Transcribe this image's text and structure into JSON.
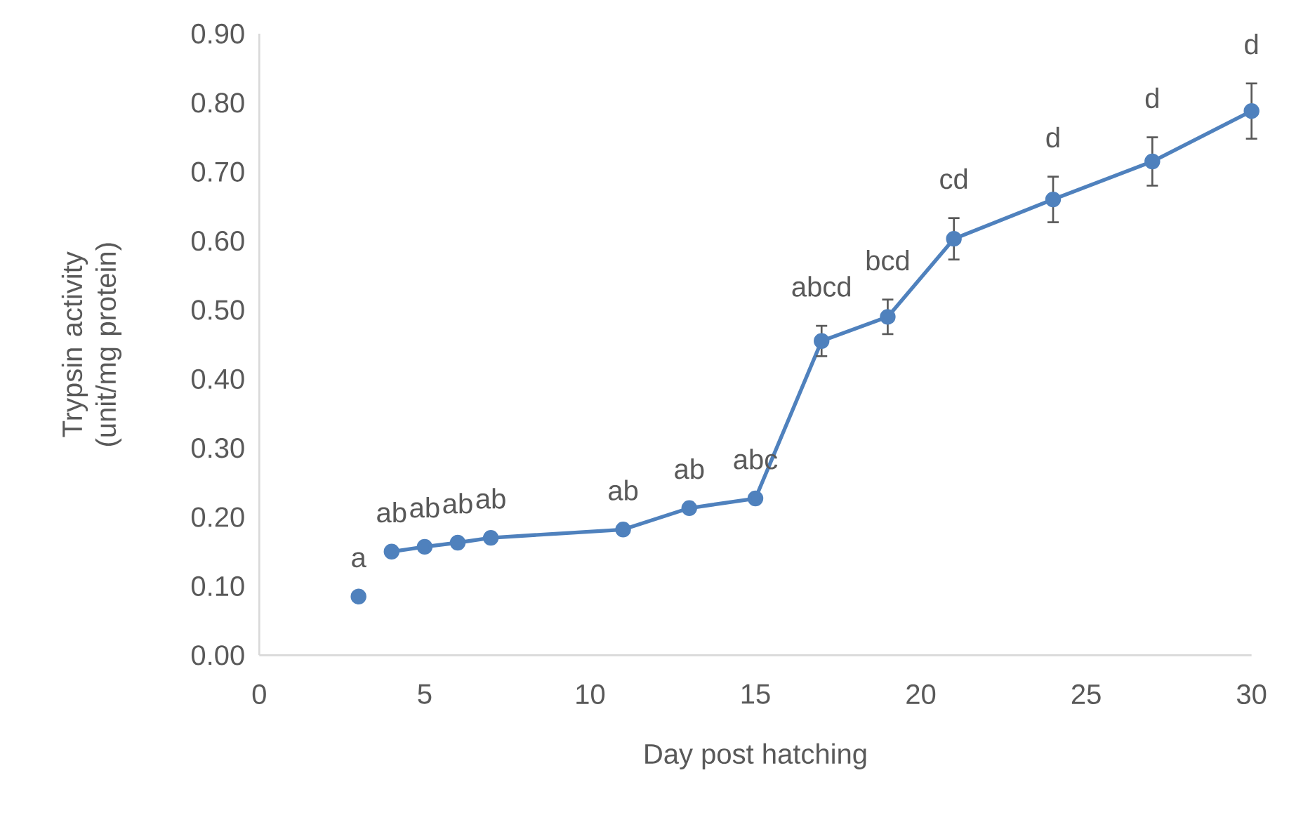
{
  "chart_data": {
    "type": "line",
    "xlabel": "Day post hatching",
    "ylabel": "Trypsin activity (unit/mg protein)",
    "xlim": [
      0,
      30
    ],
    "xticks": [
      0,
      5,
      10,
      15,
      20,
      25,
      30
    ],
    "ylim": [
      0,
      0.9
    ],
    "yticks": [
      {
        "value": 0,
        "label": "0.00"
      },
      {
        "value": 0.1,
        "label": "0.10"
      },
      {
        "value": 0.2,
        "label": "0.20"
      },
      {
        "value": 0.3,
        "label": "0.30"
      },
      {
        "value": 0.4,
        "label": "0.40"
      },
      {
        "value": 0.5,
        "label": "0.50"
      },
      {
        "value": 0.6,
        "label": "0.60"
      },
      {
        "value": 0.7,
        "label": "0.70"
      },
      {
        "value": 0.8,
        "label": "0.80"
      },
      {
        "value": 0.9,
        "label": "0.90"
      }
    ],
    "grid": false,
    "marker": "circle",
    "line_style": "solid",
    "series": [
      {
        "type": "scatter",
        "color": "#4f81bd",
        "x": [
          3
        ],
        "values": [
          0.085
        ],
        "errors": [
          null
        ]
      },
      {
        "color": "#4f81bd",
        "x": [
          4,
          5,
          6,
          7,
          11,
          13,
          15,
          17,
          19,
          21,
          24,
          27,
          30
        ],
        "values": [
          0.15,
          0.157,
          0.163,
          0.17,
          0.182,
          0.213,
          0.227,
          0.455,
          0.49,
          0.603,
          0.66,
          0.715,
          0.788
        ],
        "errors": [
          null,
          null,
          null,
          null,
          null,
          null,
          null,
          0.022,
          0.025,
          0.03,
          0.033,
          0.035,
          0.04
        ]
      }
    ],
    "annotations": [
      {
        "text": "a",
        "x": 3,
        "y": 0.085
      },
      {
        "text": "ab",
        "x": 4,
        "y": 0.15
      },
      {
        "text": "ab",
        "x": 5,
        "y": 0.157
      },
      {
        "text": "ab",
        "x": 6,
        "y": 0.163
      },
      {
        "text": "ab",
        "x": 7,
        "y": 0.17
      },
      {
        "text": "ab",
        "x": 11,
        "y": 0.182
      },
      {
        "text": "ab",
        "x": 13,
        "y": 0.213
      },
      {
        "text": "abc",
        "x": 15,
        "y": 0.227
      },
      {
        "text": "abcd",
        "x": 17,
        "y": 0.455
      },
      {
        "text": "bcd",
        "x": 19,
        "y": 0.49
      },
      {
        "text": "cd",
        "x": 21,
        "y": 0.603
      },
      {
        "text": "d",
        "x": 24,
        "y": 0.66
      },
      {
        "text": "d",
        "x": 27,
        "y": 0.715
      },
      {
        "text": "d",
        "x": 30,
        "y": 0.788
      }
    ]
  }
}
